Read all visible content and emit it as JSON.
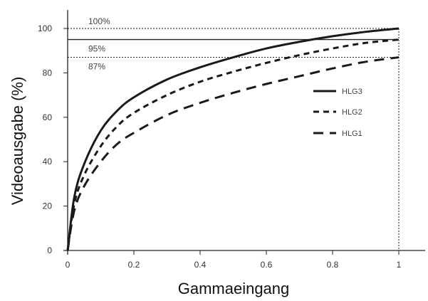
{
  "chart_data": {
    "type": "line",
    "title": "",
    "xlabel": "Gammaeingang",
    "ylabel": "Videoausgabe (%)",
    "xlim": [
      0,
      1
    ],
    "ylim": [
      0,
      110
    ],
    "x_ticks": [
      0,
      0.2,
      0.4,
      0.6,
      0.8,
      1
    ],
    "x_tick_labels": [
      "0",
      "0.2",
      "0.4",
      "0.6",
      "0.8",
      "1"
    ],
    "y_ticks": [
      0,
      20,
      40,
      60,
      80,
      100
    ],
    "y_tick_labels": [
      "0",
      "20",
      "40",
      "60",
      "80",
      "100"
    ],
    "grid": false,
    "legend_position": "center-right",
    "reference_lines": [
      {
        "y": 100,
        "label": "100%",
        "style": "dotted"
      },
      {
        "y": 95,
        "label": "95%",
        "style": "solid"
      },
      {
        "y": 87,
        "label": "87%",
        "style": "dotted"
      }
    ],
    "vertical_reference": {
      "x": 1,
      "style": "dotted"
    },
    "x": [
      0,
      0.02,
      0.05,
      0.1,
      0.15,
      0.2,
      0.3,
      0.4,
      0.5,
      0.6,
      0.7,
      0.8,
      0.9,
      1.0
    ],
    "series": [
      {
        "name": "HLG3",
        "style": "solid",
        "values": [
          0,
          24,
          39,
          54,
          63,
          69,
          77,
          82.5,
          87,
          91,
          94,
          96.5,
          98.5,
          100
        ]
      },
      {
        "name": "HLG2",
        "style": "dashed-short",
        "values": [
          0,
          21,
          34,
          47,
          56,
          62,
          70,
          76,
          80.5,
          84.5,
          88,
          91,
          93.5,
          95
        ]
      },
      {
        "name": "HLG1",
        "style": "dashed-long",
        "values": [
          0,
          18,
          29,
          40,
          48,
          53,
          61,
          66.5,
          71,
          75,
          78.5,
          82,
          85,
          87
        ]
      }
    ]
  }
}
